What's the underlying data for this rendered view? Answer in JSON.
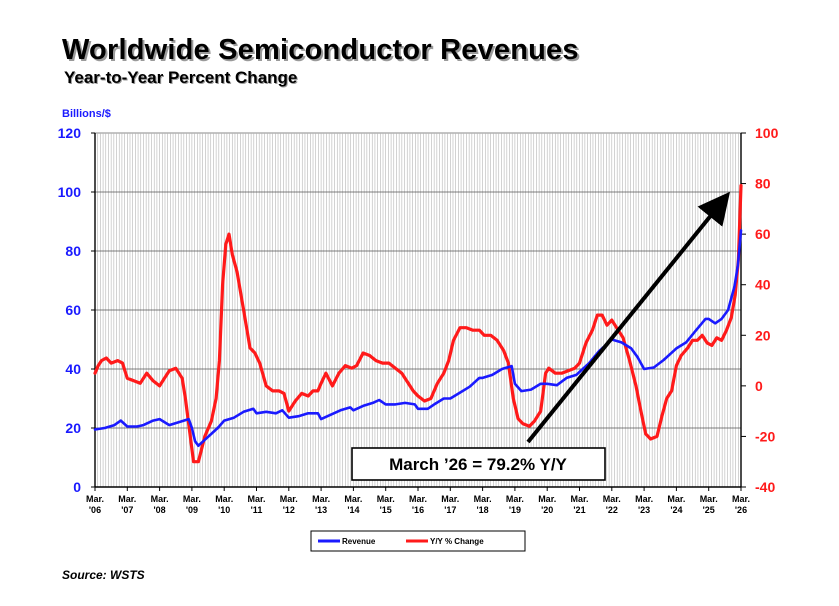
{
  "title": "Worldwide Semiconductor Revenues",
  "subtitle": "Year-to-Year Percent Change",
  "source": "Source: WSTS",
  "colors": {
    "revenue": "#1a1aff",
    "yoy": "#ff1a1a",
    "axis_left": "#1a1aff",
    "axis_right": "#ff1a1a"
  },
  "chart_data": {
    "type": "line",
    "ylabel": "Billions/$",
    "ylim": [
      0,
      120
    ],
    "y2lim": [
      -40,
      100
    ],
    "yticks": [
      0,
      20,
      40,
      60,
      80,
      100,
      120
    ],
    "y2ticks": [
      -40,
      -20,
      0,
      20,
      40,
      60,
      80,
      100
    ],
    "xlim": [
      2006.0,
      2026.0
    ],
    "xticks": [
      {
        "x": 2006,
        "top": "Mar.",
        "bottom": "'06"
      },
      {
        "x": 2007,
        "top": "Mar.",
        "bottom": "'07"
      },
      {
        "x": 2008,
        "top": "Mar.",
        "bottom": "'08"
      },
      {
        "x": 2009,
        "top": "Mar.",
        "bottom": "'09"
      },
      {
        "x": 2010,
        "top": "Mar.",
        "bottom": "'10"
      },
      {
        "x": 2011,
        "top": "Mar.",
        "bottom": "'11"
      },
      {
        "x": 2012,
        "top": "Mar.",
        "bottom": "'12"
      },
      {
        "x": 2013,
        "top": "Mar.",
        "bottom": "'13"
      },
      {
        "x": 2014,
        "top": "Mar.",
        "bottom": "'14"
      },
      {
        "x": 2015,
        "top": "Mar.",
        "bottom": "'15"
      },
      {
        "x": 2016,
        "top": "Mar.",
        "bottom": "'16"
      },
      {
        "x": 2017,
        "top": "Mar.",
        "bottom": "'17"
      },
      {
        "x": 2018,
        "top": "Mar.",
        "bottom": "'18"
      },
      {
        "x": 2019,
        "top": "Mar.",
        "bottom": "'19"
      },
      {
        "x": 2020,
        "top": "Mar.",
        "bottom": "'20"
      },
      {
        "x": 2021,
        "top": "Mar.",
        "bottom": "'21"
      },
      {
        "x": 2022,
        "top": "Mar.",
        "bottom": "'22"
      },
      {
        "x": 2023,
        "top": "Mar.",
        "bottom": "'23"
      },
      {
        "x": 2024,
        "top": "Mar.",
        "bottom": "'24"
      },
      {
        "x": 2025,
        "top": "Mar.",
        "bottom": "'25"
      },
      {
        "x": 2026,
        "top": "Mar.",
        "bottom": "'26"
      }
    ],
    "grid": "vertical-monthly",
    "legend_position": "bottom-center",
    "annotation": "March ’26 = 79.2% Y/Y",
    "series": [
      {
        "name": "Revenue",
        "axis": "left",
        "points": [
          [
            2006.0,
            19.5
          ],
          [
            2006.3,
            20
          ],
          [
            2006.6,
            21
          ],
          [
            2006.8,
            22.5
          ],
          [
            2007.0,
            20.5
          ],
          [
            2007.3,
            20.5
          ],
          [
            2007.5,
            21
          ],
          [
            2007.8,
            22.5
          ],
          [
            2008.0,
            23
          ],
          [
            2008.3,
            21
          ],
          [
            2008.6,
            22
          ],
          [
            2008.9,
            23
          ],
          [
            2009.0,
            20
          ],
          [
            2009.1,
            15.5
          ],
          [
            2009.2,
            14
          ],
          [
            2009.4,
            16
          ],
          [
            2009.6,
            18
          ],
          [
            2009.8,
            20
          ],
          [
            2010.0,
            22.5
          ],
          [
            2010.3,
            23.5
          ],
          [
            2010.6,
            25.5
          ],
          [
            2010.9,
            26.5
          ],
          [
            2011.0,
            25
          ],
          [
            2011.3,
            25.5
          ],
          [
            2011.6,
            25
          ],
          [
            2011.8,
            26
          ],
          [
            2012.0,
            23.5
          ],
          [
            2012.3,
            24
          ],
          [
            2012.6,
            25
          ],
          [
            2012.9,
            25
          ],
          [
            2013.0,
            23
          ],
          [
            2013.3,
            24.5
          ],
          [
            2013.6,
            26
          ],
          [
            2013.9,
            27
          ],
          [
            2014.0,
            26
          ],
          [
            2014.3,
            27.5
          ],
          [
            2014.6,
            28.5
          ],
          [
            2014.8,
            29.5
          ],
          [
            2015.0,
            28
          ],
          [
            2015.3,
            28
          ],
          [
            2015.6,
            28.5
          ],
          [
            2015.9,
            28
          ],
          [
            2016.0,
            26.5
          ],
          [
            2016.3,
            26.5
          ],
          [
            2016.5,
            28
          ],
          [
            2016.8,
            30
          ],
          [
            2017.0,
            30
          ],
          [
            2017.3,
            32
          ],
          [
            2017.6,
            34
          ],
          [
            2017.9,
            37
          ],
          [
            2018.0,
            37
          ],
          [
            2018.3,
            38
          ],
          [
            2018.6,
            40
          ],
          [
            2018.9,
            41
          ],
          [
            2019.0,
            35
          ],
          [
            2019.2,
            32.5
          ],
          [
            2019.5,
            33
          ],
          [
            2019.8,
            35
          ],
          [
            2020.0,
            35
          ],
          [
            2020.3,
            34.5
          ],
          [
            2020.6,
            37
          ],
          [
            2020.9,
            38
          ],
          [
            2021.0,
            39
          ],
          [
            2021.3,
            42
          ],
          [
            2021.6,
            46
          ],
          [
            2021.9,
            49
          ],
          [
            2022.0,
            50
          ],
          [
            2022.3,
            49
          ],
          [
            2022.6,
            47
          ],
          [
            2022.8,
            44
          ],
          [
            2023.0,
            40
          ],
          [
            2023.3,
            40.5
          ],
          [
            2023.6,
            43
          ],
          [
            2023.9,
            46
          ],
          [
            2024.0,
            47
          ],
          [
            2024.3,
            49
          ],
          [
            2024.6,
            53
          ],
          [
            2024.9,
            57
          ],
          [
            2025.0,
            57
          ],
          [
            2025.2,
            55.5
          ],
          [
            2025.4,
            57
          ],
          [
            2025.6,
            60
          ],
          [
            2025.8,
            68
          ],
          [
            2025.9,
            75
          ],
          [
            2026.0,
            87
          ]
        ]
      },
      {
        "name": "Y/Y % Change",
        "axis": "right",
        "points": [
          [
            2006.0,
            5
          ],
          [
            2006.1,
            8
          ],
          [
            2006.2,
            10
          ],
          [
            2006.35,
            11
          ],
          [
            2006.5,
            9
          ],
          [
            2006.7,
            10
          ],
          [
            2006.85,
            9
          ],
          [
            2007.0,
            3
          ],
          [
            2007.2,
            2
          ],
          [
            2007.4,
            1
          ],
          [
            2007.6,
            5
          ],
          [
            2007.8,
            2
          ],
          [
            2008.0,
            0
          ],
          [
            2008.15,
            3
          ],
          [
            2008.3,
            6
          ],
          [
            2008.5,
            7
          ],
          [
            2008.7,
            3
          ],
          [
            2008.8,
            -5
          ],
          [
            2008.95,
            -20
          ],
          [
            2009.05,
            -30
          ],
          [
            2009.2,
            -30
          ],
          [
            2009.4,
            -20
          ],
          [
            2009.6,
            -14
          ],
          [
            2009.75,
            -5
          ],
          [
            2009.85,
            10
          ],
          [
            2009.95,
            40
          ],
          [
            2010.05,
            56
          ],
          [
            2010.15,
            60
          ],
          [
            2010.25,
            52
          ],
          [
            2010.4,
            45
          ],
          [
            2010.6,
            30
          ],
          [
            2010.8,
            15
          ],
          [
            2010.95,
            13
          ],
          [
            2011.1,
            9
          ],
          [
            2011.3,
            0
          ],
          [
            2011.5,
            -2
          ],
          [
            2011.7,
            -2
          ],
          [
            2011.85,
            -3
          ],
          [
            2012.0,
            -10
          ],
          [
            2012.2,
            -6
          ],
          [
            2012.4,
            -3
          ],
          [
            2012.6,
            -4
          ],
          [
            2012.75,
            -2
          ],
          [
            2012.9,
            -2
          ],
          [
            2013.0,
            1
          ],
          [
            2013.15,
            5
          ],
          [
            2013.35,
            0
          ],
          [
            2013.55,
            5
          ],
          [
            2013.75,
            8
          ],
          [
            2013.95,
            7
          ],
          [
            2014.1,
            8
          ],
          [
            2014.3,
            13
          ],
          [
            2014.5,
            12
          ],
          [
            2014.7,
            10
          ],
          [
            2014.9,
            9
          ],
          [
            2015.1,
            9
          ],
          [
            2015.3,
            7
          ],
          [
            2015.5,
            5
          ],
          [
            2015.7,
            1
          ],
          [
            2015.85,
            -2
          ],
          [
            2016.0,
            -4
          ],
          [
            2016.2,
            -6
          ],
          [
            2016.4,
            -5
          ],
          [
            2016.6,
            1
          ],
          [
            2016.8,
            5
          ],
          [
            2016.95,
            10
          ],
          [
            2017.1,
            18
          ],
          [
            2017.3,
            23
          ],
          [
            2017.5,
            23
          ],
          [
            2017.7,
            22
          ],
          [
            2017.9,
            22
          ],
          [
            2018.05,
            20
          ],
          [
            2018.25,
            20
          ],
          [
            2018.45,
            18
          ],
          [
            2018.65,
            14
          ],
          [
            2018.8,
            9
          ],
          [
            2018.95,
            -5
          ],
          [
            2019.1,
            -13
          ],
          [
            2019.25,
            -15
          ],
          [
            2019.45,
            -16
          ],
          [
            2019.6,
            -14
          ],
          [
            2019.8,
            -10
          ],
          [
            2019.95,
            5
          ],
          [
            2020.05,
            7
          ],
          [
            2020.25,
            5
          ],
          [
            2020.45,
            5
          ],
          [
            2020.65,
            6
          ],
          [
            2020.85,
            7
          ],
          [
            2021.0,
            9
          ],
          [
            2021.2,
            17
          ],
          [
            2021.4,
            22
          ],
          [
            2021.55,
            28
          ],
          [
            2021.7,
            28
          ],
          [
            2021.85,
            24
          ],
          [
            2022.0,
            26
          ],
          [
            2022.15,
            23
          ],
          [
            2022.35,
            19
          ],
          [
            2022.55,
            10
          ],
          [
            2022.75,
            0
          ],
          [
            2022.9,
            -10
          ],
          [
            2023.05,
            -19
          ],
          [
            2023.2,
            -21
          ],
          [
            2023.4,
            -20
          ],
          [
            2023.55,
            -12
          ],
          [
            2023.7,
            -5
          ],
          [
            2023.85,
            -2
          ],
          [
            2024.0,
            8
          ],
          [
            2024.15,
            12
          ],
          [
            2024.35,
            15
          ],
          [
            2024.5,
            18
          ],
          [
            2024.65,
            18
          ],
          [
            2024.8,
            20
          ],
          [
            2024.95,
            17
          ],
          [
            2025.1,
            16
          ],
          [
            2025.25,
            19
          ],
          [
            2025.4,
            18
          ],
          [
            2025.55,
            22
          ],
          [
            2025.7,
            27
          ],
          [
            2025.82,
            36
          ],
          [
            2025.92,
            50
          ],
          [
            2026.0,
            79.2
          ]
        ]
      }
    ]
  }
}
